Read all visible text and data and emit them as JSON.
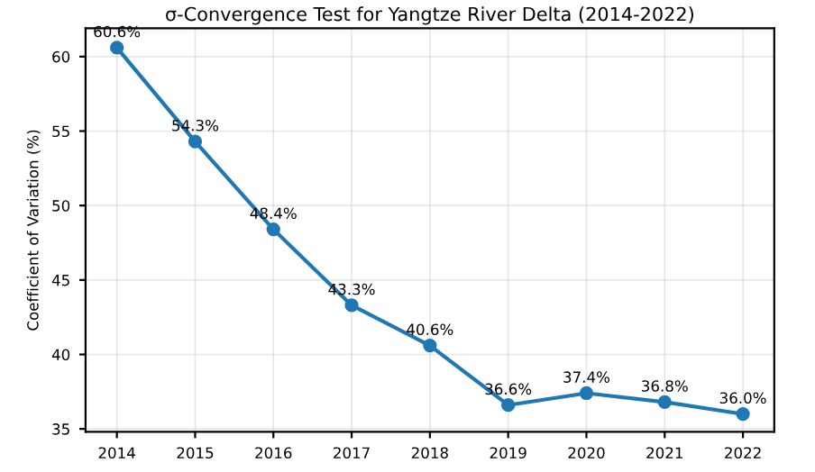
{
  "chart_data": {
    "type": "line",
    "title": "σ-Convergence Test for Yangtze River Delta (2014-2022)",
    "ylabel": "Coefficient of Variation (%)",
    "categories": [
      "2014",
      "2015",
      "2016",
      "2017",
      "2018",
      "2019",
      "2020",
      "2021",
      "2022"
    ],
    "series": [
      {
        "color": "#1f77b4",
        "values": [
          60.6,
          54.3,
          48.4,
          43.3,
          40.6,
          36.6,
          37.4,
          36.8,
          36.0
        ],
        "value_labels": [
          "60.6%",
          "54.3%",
          "48.4%",
          "43.3%",
          "40.6%",
          "36.6%",
          "37.4%",
          "36.8%",
          "36.0%"
        ]
      }
    ],
    "ylim": [
      34.8,
      61.9
    ],
    "yticks": [
      35,
      40,
      45,
      50,
      55,
      60
    ],
    "grid": true,
    "marker": "circle",
    "line_style": "solid"
  }
}
